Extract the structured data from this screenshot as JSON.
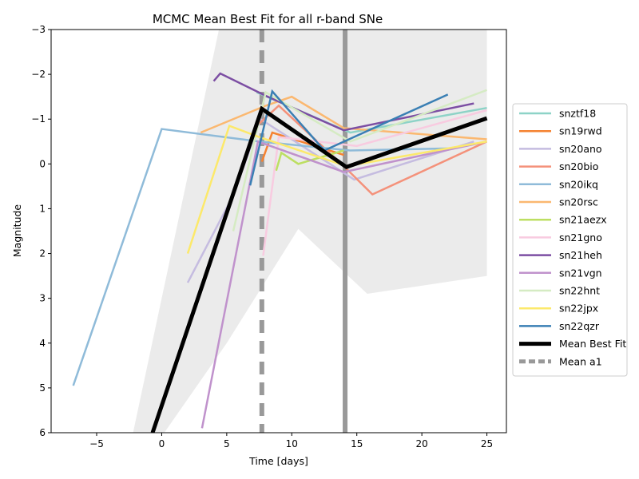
{
  "chart_data": {
    "type": "line",
    "title": "MCMC Mean Best Fit for all r-band SNe",
    "xlabel": "Time [days]",
    "ylabel": "Magnitude",
    "xlim": [
      -8.5,
      26.5
    ],
    "ylim": [
      6,
      -3
    ],
    "y_inverted": true,
    "grid": false,
    "legend_placement": "outside-right",
    "x_ticks": [
      -5,
      0,
      5,
      10,
      15,
      20,
      25
    ],
    "y_ticks": [
      -3,
      -2,
      -1,
      0,
      1,
      2,
      3,
      4,
      5,
      6
    ],
    "x_tick_labels": [
      "−5",
      "0",
      "5",
      "10",
      "15",
      "20",
      "25"
    ],
    "y_tick_labels": [
      "−3",
      "−2",
      "−1",
      "0",
      "1",
      "2",
      "3",
      "4",
      "5",
      "6"
    ],
    "band": {
      "color": "#ebebeb",
      "upper": [
        [
          -2.2,
          6
        ],
        [
          4.4,
          -3
        ],
        [
          10,
          -3
        ],
        [
          12.5,
          -3.2
        ],
        [
          14,
          -3
        ],
        [
          25,
          -3
        ]
      ],
      "lower": [
        [
          -2.2,
          6
        ],
        [
          0.2,
          6
        ],
        [
          5,
          4
        ],
        [
          10.5,
          1.45
        ],
        [
          15.8,
          2.9
        ],
        [
          25,
          2.5
        ]
      ]
    },
    "series": [
      {
        "name": "snztf18",
        "color": "#8dd3c7",
        "width": 2.5,
        "points": [
          [
            7.3,
            -1.6
          ],
          [
            14.5,
            -0.7
          ],
          [
            25,
            -1.25
          ]
        ]
      },
      {
        "name": "sn19rwd",
        "color": "#f58231",
        "width": 2.5,
        "points": [
          [
            7.7,
            -0.05
          ],
          [
            8.5,
            -0.7
          ],
          [
            14,
            -0.2
          ]
        ]
      },
      {
        "name": "sn20ano",
        "color": "#c5bce0",
        "width": 2.5,
        "points": [
          [
            2,
            2.65
          ],
          [
            5.5,
            0.7
          ],
          [
            7.6,
            -1.0
          ],
          [
            14.8,
            0.35
          ],
          [
            24,
            -0.5
          ]
        ]
      },
      {
        "name": "sn20bio",
        "color": "#f4917a",
        "width": 2.5,
        "points": [
          [
            7.5,
            -0.9
          ],
          [
            9,
            -1.3
          ],
          [
            14,
            0.05
          ],
          [
            16.2,
            0.68
          ],
          [
            25,
            -0.5
          ]
        ]
      },
      {
        "name": "sn20ikq",
        "color": "#8fbbd9",
        "width": 2.5,
        "points": [
          [
            -6.8,
            4.95
          ],
          [
            0,
            -0.78
          ],
          [
            7.5,
            -0.5
          ],
          [
            14.5,
            -0.3
          ],
          [
            22.5,
            -0.35
          ]
        ]
      },
      {
        "name": "sn20rsc",
        "color": "#fbb870",
        "width": 2.5,
        "points": [
          [
            3,
            -0.7
          ],
          [
            8,
            -1.3
          ],
          [
            10,
            -1.5
          ],
          [
            14,
            -0.8
          ],
          [
            25,
            -0.55
          ]
        ]
      },
      {
        "name": "sn21aezx",
        "color": "#bddf62",
        "width": 2.5,
        "points": [
          [
            8.8,
            0.15
          ],
          [
            9.2,
            -0.25
          ],
          [
            10.5,
            0.0
          ],
          [
            14,
            -0.3
          ]
        ]
      },
      {
        "name": "sn21gno",
        "color": "#f8cbe0",
        "width": 2.5,
        "points": [
          [
            7.8,
            2.05
          ],
          [
            9,
            -0.6
          ],
          [
            15,
            -0.4
          ],
          [
            25,
            -1.2
          ]
        ]
      },
      {
        "name": "sn21heh",
        "color": "#7c4ea3",
        "width": 2.5,
        "points": [
          [
            4.0,
            -1.85
          ],
          [
            4.5,
            -2.02
          ],
          [
            8,
            -1.52
          ],
          [
            14,
            -0.75
          ],
          [
            24,
            -1.35
          ]
        ]
      },
      {
        "name": "sn21vgn",
        "color": "#c092cc",
        "width": 2.5,
        "points": [
          [
            3.1,
            5.9
          ],
          [
            7.4,
            -0.5
          ],
          [
            14,
            0.18
          ],
          [
            25,
            -0.5
          ]
        ]
      },
      {
        "name": "sn22hnt",
        "color": "#d5ebc3",
        "width": 2.5,
        "points": [
          [
            5.5,
            1.5
          ],
          [
            8,
            -1.6
          ],
          [
            14.5,
            -0.5
          ],
          [
            25,
            -1.65
          ]
        ]
      },
      {
        "name": "sn22jpx",
        "color": "#fce96b",
        "width": 2.5,
        "points": [
          [
            2,
            2.0
          ],
          [
            5.2,
            -0.85
          ],
          [
            7.5,
            -0.6
          ],
          [
            14.2,
            0.05
          ],
          [
            25,
            -0.5
          ]
        ]
      },
      {
        "name": "sn22qzr",
        "color": "#3a7fb4",
        "width": 2.5,
        "points": [
          [
            6.8,
            0.48
          ],
          [
            8.5,
            -1.62
          ],
          [
            12.5,
            -0.3
          ],
          [
            22,
            -1.55
          ]
        ]
      },
      {
        "name": "Mean Best Fit",
        "color": "#000000",
        "width": 5,
        "points": [
          [
            -0.7,
            6.0
          ],
          [
            7.7,
            -1.23
          ],
          [
            14.2,
            0.07
          ],
          [
            25,
            -1.02
          ]
        ]
      }
    ],
    "vlines": [
      {
        "name": "Mean a1",
        "x": 7.7,
        "color": "#999999",
        "width": 6,
        "dash": "16 10"
      },
      {
        "x": 14.1,
        "color": "#999999",
        "width": 6,
        "dash": ""
      }
    ],
    "legend": [
      {
        "name": "snztf18",
        "color": "#8dd3c7",
        "width": 2.5,
        "dash": ""
      },
      {
        "name": "sn19rwd",
        "color": "#f58231",
        "width": 2.5,
        "dash": ""
      },
      {
        "name": "sn20ano",
        "color": "#c5bce0",
        "width": 2.5,
        "dash": ""
      },
      {
        "name": "sn20bio",
        "color": "#f4917a",
        "width": 2.5,
        "dash": ""
      },
      {
        "name": "sn20ikq",
        "color": "#8fbbd9",
        "width": 2.5,
        "dash": ""
      },
      {
        "name": "sn20rsc",
        "color": "#fbb870",
        "width": 2.5,
        "dash": ""
      },
      {
        "name": "sn21aezx",
        "color": "#bddf62",
        "width": 2.5,
        "dash": ""
      },
      {
        "name": "sn21gno",
        "color": "#f8cbe0",
        "width": 2.5,
        "dash": ""
      },
      {
        "name": "sn21heh",
        "color": "#7c4ea3",
        "width": 2.5,
        "dash": ""
      },
      {
        "name": "sn21vgn",
        "color": "#c092cc",
        "width": 2.5,
        "dash": ""
      },
      {
        "name": "sn22hnt",
        "color": "#d5ebc3",
        "width": 2.5,
        "dash": ""
      },
      {
        "name": "sn22jpx",
        "color": "#fce96b",
        "width": 2.5,
        "dash": ""
      },
      {
        "name": "sn22qzr",
        "color": "#3a7fb4",
        "width": 2.5,
        "dash": ""
      },
      {
        "name": "Mean Best Fit",
        "color": "#000000",
        "width": 5,
        "dash": ""
      },
      {
        "name": "Mean a1",
        "color": "#999999",
        "width": 5,
        "dash": "8 4"
      }
    ]
  }
}
